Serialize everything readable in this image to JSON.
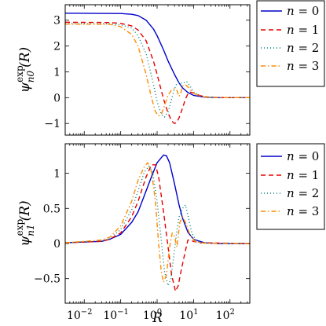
{
  "chart_data": [
    {
      "type": "line",
      "ylabel": {
        "base": "ψ",
        "sup": "exp",
        "sub": "n0",
        "arg": "(R)"
      },
      "xlabel": "",
      "xscale": "log",
      "xlim": [
        0.003,
        350
      ],
      "ylim": [
        -1.45,
        3.6
      ],
      "x_ticks": [
        {
          "value": 0.01,
          "label": "10",
          "exp": "−2"
        },
        {
          "value": 0.1,
          "label": "10",
          "exp": "−1"
        },
        {
          "value": 1,
          "label": "10",
          "exp": "0"
        },
        {
          "value": 10,
          "label": "10",
          "exp": "1"
        },
        {
          "value": 100,
          "label": "10",
          "exp": "2"
        }
      ],
      "show_x_tick_labels": false,
      "y_ticks": [
        {
          "value": -1,
          "label": "−1"
        },
        {
          "value": 0,
          "label": "0"
        },
        {
          "value": 1,
          "label": "1"
        },
        {
          "value": 2,
          "label": "2"
        },
        {
          "value": 3,
          "label": "3"
        }
      ],
      "legend": {
        "placement": "outside-top-right"
      },
      "series": [
        {
          "name": "n = 0",
          "name_var": "n",
          "name_rest": " = 0",
          "color": "#0000cc",
          "dash": "solid",
          "points": [
            [
              0.003,
              3.27
            ],
            [
              0.1,
              3.26
            ],
            [
              0.2,
              3.23
            ],
            [
              0.3,
              3.18
            ],
            [
              0.5,
              3.0
            ],
            [
              0.8,
              2.65
            ],
            [
              1,
              2.4
            ],
            [
              1.5,
              1.85
            ],
            [
              2,
              1.42
            ],
            [
              3,
              0.9
            ],
            [
              4,
              0.57
            ],
            [
              5,
              0.38
            ],
            [
              7,
              0.2
            ],
            [
              10,
              0.09
            ],
            [
              20,
              0.02
            ],
            [
              50,
              0.004
            ],
            [
              350,
              0.0
            ]
          ]
        },
        {
          "name": "n = 1",
          "name_var": "n",
          "name_rest": " = 1",
          "color": "#e60000",
          "dash": "6,4",
          "points": [
            [
              0.003,
              2.92
            ],
            [
              0.05,
              2.91
            ],
            [
              0.1,
              2.88
            ],
            [
              0.2,
              2.78
            ],
            [
              0.3,
              2.62
            ],
            [
              0.5,
              2.2
            ],
            [
              0.8,
              1.4
            ],
            [
              1,
              0.9
            ],
            [
              1.5,
              -0.05
            ],
            [
              2,
              -0.6
            ],
            [
              2.5,
              -0.9
            ],
            [
              3,
              -1.0
            ],
            [
              3.5,
              -0.95
            ],
            [
              4,
              -0.78
            ],
            [
              5,
              -0.4
            ],
            [
              6,
              -0.05
            ],
            [
              7,
              0.15
            ],
            [
              8,
              0.22
            ],
            [
              10,
              0.18
            ],
            [
              15,
              0.08
            ],
            [
              25,
              0.02
            ],
            [
              60,
              0.003
            ],
            [
              350,
              0.0
            ]
          ]
        },
        {
          "name": "n = 2",
          "name_var": "n",
          "name_rest": " = 2",
          "color": "#008080",
          "dash": "1,3",
          "points": [
            [
              0.003,
              2.87
            ],
            [
              0.05,
              2.86
            ],
            [
              0.1,
              2.82
            ],
            [
              0.2,
              2.7
            ],
            [
              0.3,
              2.4
            ],
            [
              0.5,
              1.7
            ],
            [
              0.8,
              0.5
            ],
            [
              1,
              -0.15
            ],
            [
              1.3,
              -0.65
            ],
            [
              1.6,
              -0.75
            ],
            [
              2,
              -0.55
            ],
            [
              2.5,
              -0.05
            ],
            [
              3,
              0.35
            ],
            [
              3.5,
              0.55
            ],
            [
              4,
              0.6
            ],
            [
              5,
              0.55
            ],
            [
              6,
              0.62
            ],
            [
              6.5,
              0.62
            ],
            [
              8,
              0.45
            ],
            [
              10,
              0.22
            ],
            [
              15,
              0.08
            ],
            [
              25,
              0.02
            ],
            [
              60,
              0.003
            ],
            [
              350,
              0.0
            ]
          ]
        },
        {
          "name": "n = 3",
          "name_var": "n",
          "name_rest": " = 3",
          "color": "#ff8c00",
          "dash": "6,3,1.5,3",
          "points": [
            [
              0.003,
              2.85
            ],
            [
              0.05,
              2.84
            ],
            [
              0.1,
              2.75
            ],
            [
              0.2,
              2.45
            ],
            [
              0.3,
              2.0
            ],
            [
              0.5,
              0.9
            ],
            [
              0.7,
              0.0
            ],
            [
              0.9,
              -0.55
            ],
            [
              1.1,
              -0.7
            ],
            [
              1.3,
              -0.65
            ],
            [
              1.6,
              -0.3
            ],
            [
              2,
              0.1
            ],
            [
              2.5,
              0.3
            ],
            [
              3,
              0.35
            ],
            [
              3.5,
              0.28
            ],
            [
              4,
              0.05
            ],
            [
              4.5,
              0.2
            ],
            [
              5,
              0.45
            ],
            [
              6,
              0.5
            ],
            [
              7,
              0.42
            ],
            [
              9,
              0.25
            ],
            [
              12,
              0.1
            ],
            [
              20,
              0.03
            ],
            [
              50,
              0.005
            ],
            [
              350,
              0.0
            ]
          ]
        }
      ]
    },
    {
      "type": "line",
      "ylabel": {
        "base": "ψ",
        "sup": "exp",
        "sub": "n1",
        "arg": "(R)"
      },
      "xlabel": "R",
      "xscale": "log",
      "xlim": [
        0.003,
        350
      ],
      "ylim": [
        -0.85,
        1.42
      ],
      "x_ticks": [
        {
          "value": 0.01,
          "label": "10",
          "exp": "−2"
        },
        {
          "value": 0.1,
          "label": "10",
          "exp": "−1"
        },
        {
          "value": 1,
          "label": "10",
          "exp": "0"
        },
        {
          "value": 10,
          "label": "10",
          "exp": "1"
        },
        {
          "value": 100,
          "label": "10",
          "exp": "2"
        }
      ],
      "show_x_tick_labels": true,
      "y_ticks": [
        {
          "value": -0.5,
          "label": "−0.5"
        },
        {
          "value": 0,
          "label": "0"
        },
        {
          "value": 0.5,
          "label": "0.5"
        },
        {
          "value": 1,
          "label": "1"
        }
      ],
      "legend": {
        "placement": "outside-top-right"
      },
      "series": [
        {
          "name": "n = 0",
          "name_var": "n",
          "name_rest": " = 0",
          "color": "#0000cc",
          "dash": "solid",
          "points": [
            [
              0.003,
              0.01
            ],
            [
              0.03,
              0.03
            ],
            [
              0.05,
              0.06
            ],
            [
              0.1,
              0.13
            ],
            [
              0.2,
              0.3
            ],
            [
              0.3,
              0.45
            ],
            [
              0.5,
              0.75
            ],
            [
              0.7,
              0.95
            ],
            [
              1,
              1.15
            ],
            [
              1.5,
              1.26
            ],
            [
              1.8,
              1.25
            ],
            [
              2.2,
              1.15
            ],
            [
              3,
              0.85
            ],
            [
              4,
              0.55
            ],
            [
              5,
              0.36
            ],
            [
              7,
              0.16
            ],
            [
              10,
              0.06
            ],
            [
              20,
              0.01
            ],
            [
              50,
              0.0
            ],
            [
              350,
              0.0
            ]
          ]
        },
        {
          "name": "n = 1",
          "name_var": "n",
          "name_rest": " = 1",
          "color": "#e60000",
          "dash": "6,4",
          "points": [
            [
              0.003,
              0.01
            ],
            [
              0.03,
              0.03
            ],
            [
              0.05,
              0.06
            ],
            [
              0.1,
              0.15
            ],
            [
              0.2,
              0.38
            ],
            [
              0.3,
              0.6
            ],
            [
              0.5,
              0.95
            ],
            [
              0.7,
              1.12
            ],
            [
              0.9,
              1.12
            ],
            [
              1.1,
              0.95
            ],
            [
              1.5,
              0.45
            ],
            [
              2,
              -0.05
            ],
            [
              2.5,
              -0.45
            ],
            [
              3.2,
              -0.68
            ],
            [
              3.8,
              -0.6
            ],
            [
              4.5,
              -0.4
            ],
            [
              6,
              -0.1
            ],
            [
              7,
              0.05
            ],
            [
              8,
              0.05
            ],
            [
              10,
              0.03
            ],
            [
              15,
              0.01
            ],
            [
              350,
              0.0
            ]
          ]
        },
        {
          "name": "n = 2",
          "name_var": "n",
          "name_rest": " = 2",
          "color": "#008080",
          "dash": "1,3",
          "points": [
            [
              0.003,
              0.01
            ],
            [
              0.03,
              0.04
            ],
            [
              0.05,
              0.07
            ],
            [
              0.1,
              0.2
            ],
            [
              0.2,
              0.48
            ],
            [
              0.3,
              0.75
            ],
            [
              0.45,
              1.02
            ],
            [
              0.6,
              1.1
            ],
            [
              0.75,
              1.02
            ],
            [
              1,
              0.6
            ],
            [
              1.3,
              0.05
            ],
            [
              1.6,
              -0.4
            ],
            [
              2,
              -0.6
            ],
            [
              2.4,
              -0.5
            ],
            [
              3,
              -0.1
            ],
            [
              3.5,
              0.2
            ],
            [
              4,
              0.38
            ],
            [
              5,
              0.5
            ],
            [
              6,
              0.55
            ],
            [
              7,
              0.4
            ],
            [
              9,
              0.15
            ],
            [
              12,
              0.03
            ],
            [
              20,
              0.005
            ],
            [
              350,
              0.0
            ]
          ]
        },
        {
          "name": "n = 3",
          "name_var": "n",
          "name_rest": " = 3",
          "color": "#ff8c00",
          "dash": "6,3,1.5,3",
          "points": [
            [
              0.003,
              0.01
            ],
            [
              0.03,
              0.05
            ],
            [
              0.05,
              0.09
            ],
            [
              0.1,
              0.25
            ],
            [
              0.2,
              0.6
            ],
            [
              0.3,
              0.9
            ],
            [
              0.45,
              1.1
            ],
            [
              0.55,
              1.15
            ],
            [
              0.7,
              1.02
            ],
            [
              0.9,
              0.6
            ],
            [
              1.1,
              0.0
            ],
            [
              1.3,
              -0.4
            ],
            [
              1.5,
              -0.55
            ],
            [
              1.8,
              -0.45
            ],
            [
              2.2,
              -0.05
            ],
            [
              2.6,
              0.15
            ],
            [
              3,
              0.1
            ],
            [
              3.5,
              -0.05
            ],
            [
              4.2,
              0.3
            ],
            [
              5,
              0.38
            ],
            [
              6,
              0.3
            ],
            [
              8,
              0.12
            ],
            [
              11,
              0.03
            ],
            [
              20,
              0.005
            ],
            [
              350,
              0.0
            ]
          ]
        }
      ]
    }
  ]
}
